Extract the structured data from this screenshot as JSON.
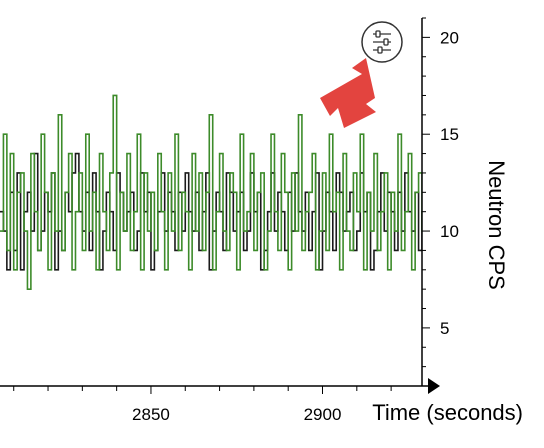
{
  "chart_data": {
    "type": "line",
    "step": true,
    "xlabel": "Time (seconds)",
    "ylabel": "Neutron CPS",
    "xlim": [
      2806,
      2929
    ],
    "ylim": [
      2,
      21
    ],
    "x_ticks": [
      2850,
      2900
    ],
    "y_ticks": [
      5,
      10,
      15,
      20
    ],
    "y_axis_position": "right",
    "x_axis_arrow": true,
    "grid": false,
    "series": [
      {
        "color": "#1a1a1a",
        "start_x": 2806,
        "step_x": 1,
        "values": [
          11,
          10,
          8,
          12,
          9,
          13,
          8,
          11,
          12,
          10,
          14,
          9,
          10,
          12,
          11,
          13,
          8,
          10,
          9,
          12,
          11,
          13,
          14,
          11,
          10,
          12,
          9,
          13,
          11,
          8,
          10,
          12,
          11,
          9,
          13,
          12,
          10,
          11,
          12,
          9,
          10,
          13,
          11,
          12,
          8,
          9,
          11,
          13,
          10,
          12,
          11,
          9,
          12,
          10,
          13,
          11,
          10,
          12,
          9,
          11,
          13,
          8,
          10,
          12,
          11,
          9,
          13,
          12,
          10,
          11,
          12,
          9,
          10,
          13,
          11,
          12,
          8,
          9,
          11,
          13,
          10,
          12,
          11,
          9,
          12,
          10,
          13,
          11,
          10,
          12,
          9,
          11,
          13,
          8,
          10,
          12,
          11,
          9,
          13,
          12,
          10,
          11,
          12,
          9,
          10,
          13,
          11,
          12,
          8,
          9,
          11,
          13,
          10,
          12,
          11,
          9,
          12,
          10,
          13,
          11,
          10,
          12,
          9,
          11
        ]
      },
      {
        "color": "#3d8b2a",
        "start_x": 2806,
        "step_x": 1,
        "values": [
          10,
          15,
          9,
          14,
          8,
          12,
          13,
          10,
          7,
          14,
          11,
          9,
          15,
          12,
          8,
          13,
          10,
          16,
          9,
          12,
          14,
          8,
          11,
          13,
          9,
          15,
          10,
          12,
          8,
          14,
          11,
          9,
          13,
          17,
          8,
          12,
          10,
          14,
          9,
          11,
          15,
          8,
          13,
          10,
          12,
          9,
          14,
          11,
          8,
          13,
          10,
          15,
          9,
          12,
          11,
          8,
          14,
          10,
          13,
          9,
          12,
          16,
          8,
          11,
          14,
          10,
          9,
          13,
          12,
          8,
          15,
          10,
          11,
          14,
          9,
          12,
          13,
          8,
          10,
          15,
          11,
          9,
          14,
          12,
          8,
          13,
          10,
          16,
          9,
          11,
          12,
          14,
          8,
          10,
          13,
          9,
          15,
          11,
          12,
          8,
          14,
          10,
          9,
          13,
          11,
          15,
          8,
          12,
          10,
          14,
          9,
          11,
          13,
          8,
          12,
          10,
          15,
          9,
          11,
          14,
          8,
          12,
          13,
          10
        ]
      }
    ]
  },
  "toolbar": {
    "settings_icon": "sliders-icon"
  }
}
